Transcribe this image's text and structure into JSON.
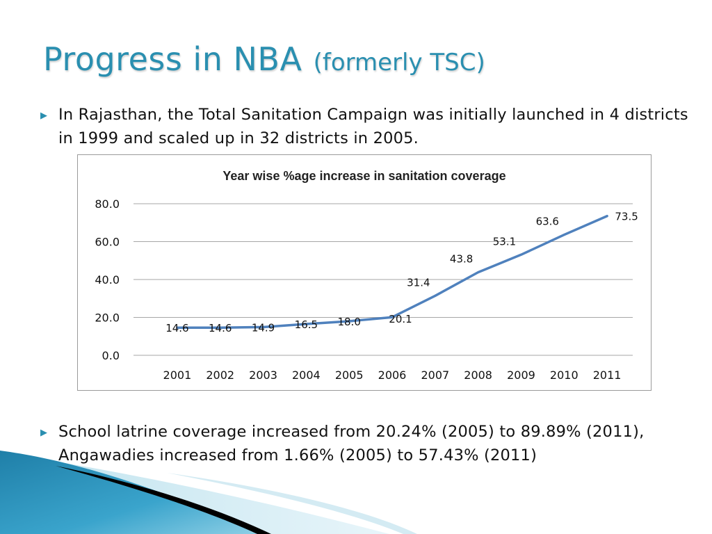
{
  "slide": {
    "title_main": "Progress in NBA",
    "title_sub": "(formerly TSC)",
    "bullets": [
      {
        "marker": "▶",
        "text": "In Rajasthan, the Total Sanitation Campaign was initially launched in 4 districts in 1999 and scaled up in 32 districts in 2005."
      },
      {
        "marker": "▶",
        "text": "School latrine coverage increased from 20.24% (2005) to 89.89% (2011), Angawadies increased from 1.66% (2005) to 57.43% (2011)"
      }
    ]
  },
  "chart_data": {
    "type": "line",
    "title": "Year wise %age increase in sanitation coverage",
    "xlabel": "",
    "ylabel": "",
    "categories": [
      "2001",
      "2002",
      "2003",
      "2004",
      "2005",
      "2006",
      "2007",
      "2008",
      "2009",
      "2010",
      "2011"
    ],
    "values": [
      14.6,
      14.6,
      14.9,
      16.5,
      18.0,
      20.1,
      31.4,
      43.8,
      53.1,
      63.6,
      73.5
    ],
    "data_labels": [
      "14.6",
      "14.6",
      "14.9",
      "16.5",
      "18.0",
      "20.1",
      "31.4",
      "43.8",
      "53.1",
      "63.6",
      "73.5"
    ],
    "ylim": [
      0,
      80
    ],
    "yticks": [
      "0.0",
      "20.0",
      "40.0",
      "60.0",
      "80.0"
    ],
    "grid": true,
    "legend": "none",
    "line_color": "#4f81bd"
  }
}
